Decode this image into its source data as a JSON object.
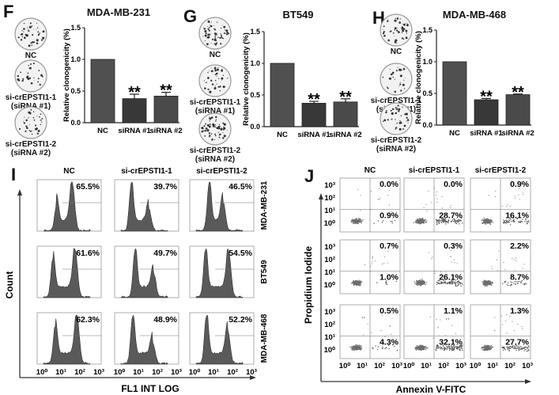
{
  "panels": {
    "F": {
      "letter": "F",
      "title": "MDA-MB-231"
    },
    "G": {
      "letter": "G",
      "title": "BT549"
    },
    "H": {
      "letter": "H",
      "title": "MDA-MB-468"
    },
    "I": {
      "letter": "I"
    },
    "J": {
      "letter": "J"
    }
  },
  "dish_labels": {
    "nc": "NC",
    "si1_line1": "si-crEPSTI1-1",
    "si1_line2": "(siRNA #1)",
    "si2_line1": "si-crEPSTI1-2",
    "si2_line2": "(siRNA #2)"
  },
  "chart_data": [
    {
      "id": "F",
      "type": "bar",
      "title": "MDA-MB-231",
      "categories": [
        "NC",
        "siRNA #1",
        "siRNA #2"
      ],
      "values": [
        1.0,
        0.38,
        0.42
      ],
      "errors": [
        0.0,
        0.07,
        0.06
      ],
      "significance": [
        "",
        "**",
        "**"
      ],
      "ylabel": "Relative clonogenicity (%)",
      "xlabel": "",
      "ylim": [
        0,
        1.5
      ],
      "yticks": [
        "0.0",
        "0.5",
        "1.0",
        "1.5"
      ]
    },
    {
      "id": "G",
      "type": "bar",
      "title": "BT549",
      "categories": [
        "NC",
        "siRNA #1",
        "siRNA #2"
      ],
      "values": [
        1.0,
        0.37,
        0.39
      ],
      "errors": [
        0.0,
        0.03,
        0.05
      ],
      "significance": [
        "",
        "**",
        "**"
      ],
      "ylabel": "Relative clonogenicity (%)",
      "xlabel": "",
      "ylim": [
        0,
        1.5
      ],
      "yticks": [
        "0.0",
        "0.5",
        "1.0",
        "1.5"
      ]
    },
    {
      "id": "H",
      "type": "bar",
      "title": "MDA-MB-468",
      "categories": [
        "NC",
        "siRNA #1",
        "siRNA #2"
      ],
      "values": [
        1.0,
        0.4,
        0.48
      ],
      "errors": [
        0.0,
        0.02,
        0.01
      ],
      "significance": [
        "",
        "**",
        "**"
      ],
      "ylabel": "Relative clonogenicity (%)",
      "xlabel": "",
      "ylim": [
        0,
        1.5
      ],
      "yticks": [
        "0.0",
        "0.5",
        "1.0",
        "1.5"
      ]
    },
    {
      "id": "I",
      "type": "histogram-grid",
      "columns": [
        "NC",
        "si-crEPSTI1-1",
        "si-crEPSTI1-2"
      ],
      "rows": [
        "MDA-MB-231",
        "BT549",
        "MDA-MB-468"
      ],
      "percentages": [
        [
          "65.5%",
          "39.7%",
          "46.5%"
        ],
        [
          "61.6%",
          "49.7%",
          "54.5%"
        ],
        [
          "62.3%",
          "48.9%",
          "52.2%"
        ]
      ],
      "xlabel": "FL1 INT LOG",
      "ylabel": "Count",
      "xticks": [
        "10⁰",
        "10¹",
        "10²",
        "10³"
      ]
    },
    {
      "id": "J",
      "type": "scatter-grid",
      "columns": [
        "NC",
        "si-crEPSTI1-1",
        "si-crEPSTI1-2"
      ],
      "rows": [
        "MDA-MB-231",
        "BT549",
        "MDA-MB-468"
      ],
      "upper_right": [
        [
          "0.0%",
          "0.0%",
          "0.9%"
        ],
        [
          "0.7%",
          "0.3%",
          "2.2%"
        ],
        [
          "0.5%",
          "1.1%",
          "1.3%"
        ]
      ],
      "lower_right": [
        [
          "0.9%",
          "28.7%",
          "16.1%"
        ],
        [
          "1.0%",
          "26.1%",
          "8.7%"
        ],
        [
          "4.3%",
          "32.1%",
          "27.7%"
        ]
      ],
      "xlabel": "Annexin V-FITC",
      "ylabel": "Propidium Iodide",
      "xticks": [
        "10⁰",
        "10¹",
        "10²",
        "10³"
      ],
      "yticks": [
        "10⁰",
        "10¹",
        "10²",
        "10³"
      ]
    }
  ],
  "colors": {
    "bar_nc": "#505050",
    "bar_si1": "#383838",
    "bar_si2": "#4a4a4a",
    "histogram_fill": "#5a5a5a",
    "scatter_dot": "#6e6e6e",
    "axis": "#222222",
    "frame": "#9a9a9a"
  }
}
